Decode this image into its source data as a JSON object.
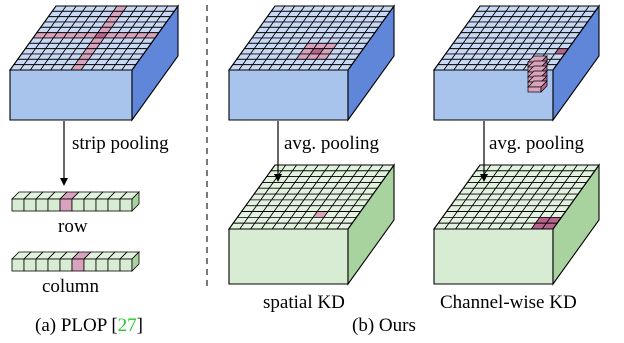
{
  "colors": {
    "blue_front": "#a9c4ec",
    "blue_top": "#c9d9f5",
    "blue_side": "#5f86d9",
    "green_front": "#d8ecd3",
    "green_top": "#e3f2de",
    "green_side": "#a9d39e",
    "highlight": "#d9a3bd",
    "highlight_strong": "#b7638c",
    "ref_green": "#22cc22"
  },
  "labels": {
    "strip_pooling": "strip pooling",
    "row": "row",
    "column": "column",
    "avg_pooling_1": "avg. pooling",
    "avg_pooling_2": "avg. pooling",
    "spatial_kd": "spatial KD",
    "channel_kd": "Channel-wise KD"
  },
  "captions": {
    "a_prefix": "(a) PLOP [",
    "a_ref": "27",
    "a_suffix": "]",
    "b": "(b) Ours"
  }
}
